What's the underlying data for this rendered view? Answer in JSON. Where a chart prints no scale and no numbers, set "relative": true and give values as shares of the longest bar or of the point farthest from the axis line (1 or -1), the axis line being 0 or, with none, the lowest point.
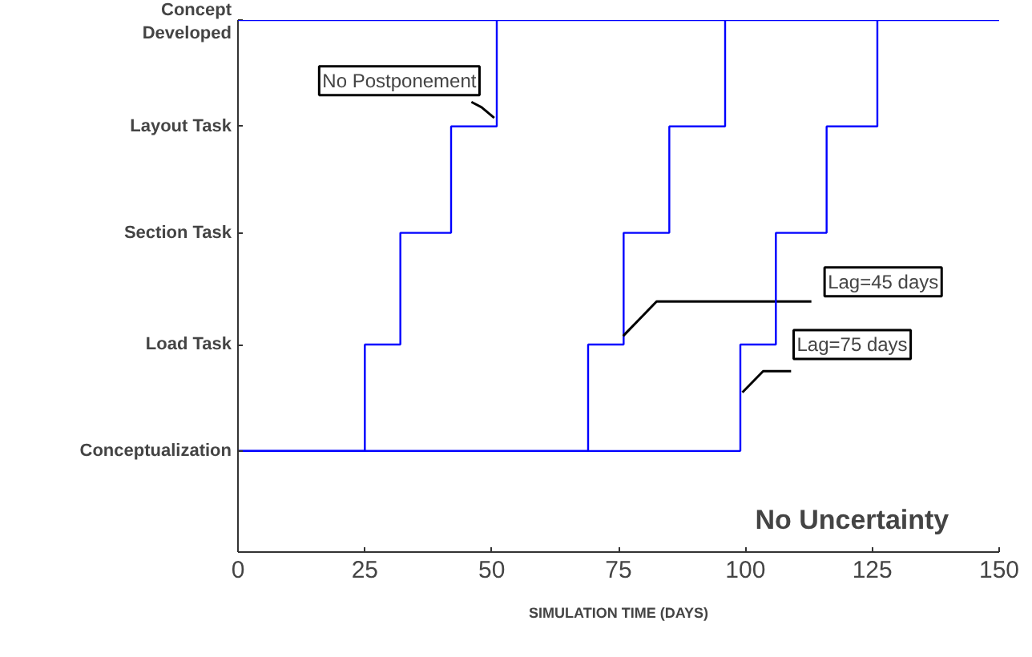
{
  "chart_data": {
    "type": "step",
    "relative": true,
    "xlabel": "SIMULATION TIME (DAYS)",
    "xlim": [
      0,
      150
    ],
    "xticks": [
      0,
      25,
      50,
      75,
      100,
      125,
      150
    ],
    "series": [
      {
        "name": "No Postponement",
        "color": "#0000ff",
        "x": [
          0,
          25,
          32,
          42,
          51
        ],
        "values": [
          0.19,
          0.39,
          0.6,
          0.8,
          1
        ]
      },
      {
        "name": "Lag=45 days",
        "color": "#0000ff",
        "x": [
          0,
          69,
          76,
          85,
          96
        ],
        "values": [
          0.19,
          0.39,
          0.6,
          0.8,
          1
        ]
      },
      {
        "name": "Lag=75 days",
        "color": "#0000ff",
        "x": [
          0,
          99,
          106,
          116,
          126
        ],
        "values": [
          0.19,
          0.39,
          0.6,
          0.8,
          1
        ]
      }
    ],
    "ref_lines": [
      {
        "axis": "y",
        "value": 1,
        "color": "#0000ff"
      }
    ],
    "annotations": [
      "Conceptualization",
      "Load Task",
      "Section Task",
      "Layout Task",
      "Concept\nDeveloped",
      "No Uncertainty"
    ],
    "grid": false,
    "legend": false
  }
}
